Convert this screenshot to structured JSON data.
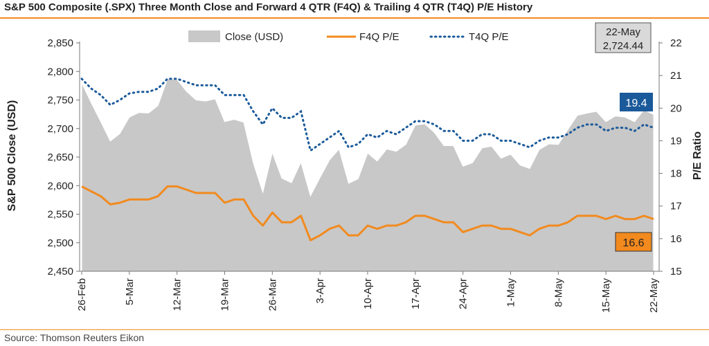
{
  "title": "S&P 500 Composite (.SPX) Three Month Close and Forward 4 QTR (F4Q) & Trailing 4 QTR (T4Q) P/E History",
  "source": "Source: Thomson Reuters Eikon",
  "chart_data": {
    "type": "area+line",
    "x_ticks": [
      "26-Feb",
      "5-Mar",
      "12-Mar",
      "19-Mar",
      "26-Mar",
      "3-Apr",
      "10-Apr",
      "17-Apr",
      "24-Apr",
      "1-May",
      "8-May",
      "15-May",
      "22-May"
    ],
    "n_points": 61,
    "y_left": {
      "label": "S&P 500 Close (USD)",
      "ticks": [
        "2,450",
        "2,500",
        "2,550",
        "2,600",
        "2,650",
        "2,700",
        "2,750",
        "2,800",
        "2,850"
      ],
      "lim": [
        2450,
        2850
      ]
    },
    "y_right": {
      "label": "P/E Ratio",
      "ticks": [
        "15",
        "16",
        "17",
        "18",
        "19",
        "20",
        "21",
        "22"
      ],
      "lim": [
        15,
        22
      ]
    },
    "series": [
      {
        "name": "Close (USD)",
        "type": "area",
        "axis": "left",
        "color": "#c8c8c8",
        "values": [
          2780,
          2745,
          2712,
          2678,
          2691,
          2720,
          2728,
          2727,
          2740,
          2787,
          2786,
          2765,
          2750,
          2748,
          2752,
          2712,
          2716,
          2711,
          2640,
          2588,
          2658,
          2613,
          2605,
          2641,
          2582,
          2614,
          2645,
          2664,
          2604,
          2612,
          2657,
          2643,
          2664,
          2660,
          2672,
          2706,
          2708,
          2693,
          2670,
          2670,
          2634,
          2640,
          2666,
          2669,
          2648,
          2655,
          2636,
          2630,
          2663,
          2673,
          2672,
          2698,
          2723,
          2727,
          2730,
          2712,
          2722,
          2720,
          2712,
          2733,
          2724.44
        ]
      },
      {
        "name": "F4Q P/E",
        "type": "line",
        "axis": "right",
        "color": "#f28a1e",
        "values": [
          17.6,
          17.45,
          17.3,
          17.05,
          17.1,
          17.2,
          17.2,
          17.2,
          17.3,
          17.6,
          17.6,
          17.5,
          17.4,
          17.4,
          17.4,
          17.1,
          17.2,
          17.2,
          16.7,
          16.4,
          16.8,
          16.5,
          16.5,
          16.7,
          15.95,
          16.1,
          16.3,
          16.4,
          16.1,
          16.1,
          16.4,
          16.3,
          16.4,
          16.4,
          16.5,
          16.7,
          16.7,
          16.6,
          16.5,
          16.5,
          16.2,
          16.3,
          16.4,
          16.4,
          16.3,
          16.3,
          16.2,
          16.1,
          16.3,
          16.4,
          16.4,
          16.5,
          16.7,
          16.7,
          16.7,
          16.6,
          16.7,
          16.6,
          16.6,
          16.7,
          16.6
        ]
      },
      {
        "name": "T4Q P/E",
        "type": "line",
        "axis": "right",
        "color": "#1b5a9a",
        "values": [
          20.9,
          20.6,
          20.4,
          20.1,
          20.25,
          20.45,
          20.5,
          20.5,
          20.6,
          20.9,
          20.9,
          20.8,
          20.7,
          20.7,
          20.7,
          20.4,
          20.4,
          20.4,
          19.9,
          19.5,
          20.0,
          19.7,
          19.7,
          19.9,
          18.7,
          18.9,
          19.1,
          19.3,
          18.8,
          18.9,
          19.2,
          19.1,
          19.3,
          19.2,
          19.4,
          19.6,
          19.6,
          19.5,
          19.3,
          19.3,
          19.0,
          19.0,
          19.2,
          19.2,
          19.0,
          19.0,
          18.9,
          18.8,
          19.0,
          19.1,
          19.1,
          19.2,
          19.4,
          19.5,
          19.5,
          19.3,
          19.4,
          19.4,
          19.3,
          19.5,
          19.4
        ]
      }
    ],
    "legend": {
      "placement": "top"
    },
    "callouts": {
      "close": {
        "date": "22-May",
        "value": "2,724.44",
        "color": "#d9d9d9"
      },
      "t4q": {
        "value": "19.4",
        "color": "#1b5a9a"
      },
      "f4q": {
        "value": "16.6",
        "color": "#f28a1e"
      }
    }
  }
}
